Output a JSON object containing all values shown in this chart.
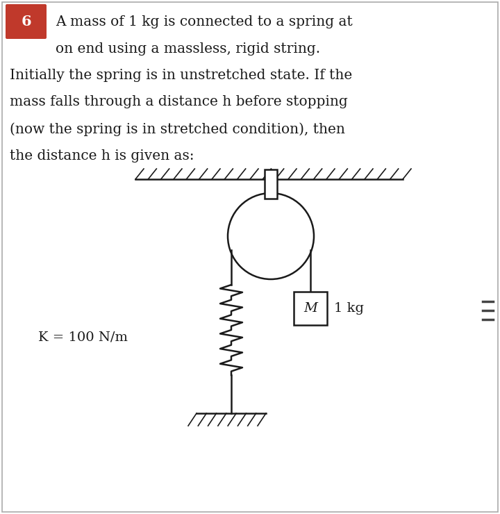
{
  "bg_color": "#ffffff",
  "text_color": "#1a1a1a",
  "line_color": "#1a1a1a",
  "badge_color": "#c0392b",
  "badge_text": "6",
  "title_lines": [
    "A mass of 1 kg is connected to a spring at",
    "on end using a massless, rigid string.",
    "Initially the spring is in unstretched state. If the",
    "mass falls through a distance h before stopping",
    "(now the spring is in stretched condition), then",
    "the distance h is given as:"
  ],
  "k_label": "K = 100 N/m",
  "mass_label": "M",
  "mass_value": "1 kg",
  "border_color": "#cccccc"
}
